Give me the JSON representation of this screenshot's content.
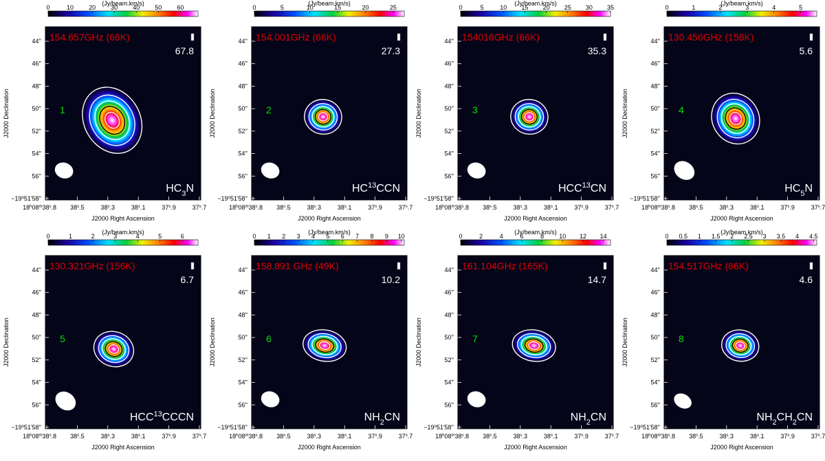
{
  "chart_data": [
    {
      "type": "heatmap",
      "title": "154.657GHz (66K)",
      "panel_number": "1",
      "molecule": "HC<sub>3</sub>N",
      "peak_label": "67.8",
      "colorbar": {
        "label": "(Jy/beam.km/s)",
        "ticks": [
          "0",
          "10",
          "20",
          "30",
          "40",
          "50",
          "60"
        ],
        "tick_values": [
          0,
          10,
          20,
          30,
          40,
          50,
          60
        ],
        "range": [
          0,
          68
        ]
      },
      "xlabel": "J2000 Right Ascension",
      "ylabel": "J2000 Declination",
      "x_ticks": [
        "18<sup>h</sup>08<sup>m</sup>38<sup>s</sup>.8",
        "38<sup>s</sup>.5",
        "38<sup>s</sup>.3",
        "38<sup>s</sup>.1",
        "37<sup>s</sup>.9",
        "37<sup>s</sup>.7"
      ],
      "y_ticks": [
        "44''",
        "46''",
        "48''",
        "50''",
        "52''",
        "54''",
        "56''",
        "−19<sup>o</sup>51'58''"
      ],
      "contour_levels_frac": [
        0.1,
        0.2,
        0.4,
        0.6,
        0.8
      ],
      "source": {
        "x": 0.43,
        "y": 0.54,
        "rx": 0.18,
        "ry": 0.2,
        "angle": -30
      },
      "beam": {
        "x": 0.12,
        "y": 0.83,
        "rx": 0.06,
        "ry": 0.045,
        "angle": 20
      }
    },
    {
      "type": "heatmap",
      "title": "154.001GHz (66K)",
      "panel_number": "2",
      "molecule": "HC<sup>13</sup>CCN",
      "peak_label": "27.3",
      "colorbar": {
        "label": "(Jy/beam.km/s)",
        "ticks": [
          "0",
          "5",
          "10",
          "15",
          "20",
          "25"
        ],
        "tick_values": [
          0,
          5,
          10,
          15,
          20,
          25
        ],
        "range": [
          0,
          27
        ]
      },
      "xlabel": "J2000 Right Ascension",
      "ylabel": "J2000 Declination",
      "x_ticks": [
        "18<sup>h</sup>08<sup>m</sup>38<sup>s</sup>.8",
        "38<sup>s</sup>.5",
        "38<sup>s</sup>.3",
        "38<sup>s</sup>.1",
        "37<sup>s</sup>.9",
        "37<sup>s</sup>.7"
      ],
      "y_ticks": [
        "44''",
        "46''",
        "48''",
        "50''",
        "52''",
        "54''",
        "56''",
        "−19<sup>o</sup>51'58''"
      ],
      "contour_levels_frac": [
        0.1,
        0.2,
        0.4,
        0.6,
        0.8
      ],
      "source": {
        "x": 0.46,
        "y": 0.52,
        "rx": 0.12,
        "ry": 0.1,
        "angle": 10
      },
      "beam": {
        "x": 0.12,
        "y": 0.83,
        "rx": 0.06,
        "ry": 0.045,
        "angle": 20
      }
    },
    {
      "type": "heatmap",
      "title": "154016GHz (66K)",
      "panel_number": "3",
      "molecule": "HCC<sup>13</sup>CN",
      "peak_label": "35.3",
      "colorbar": {
        "label": "(Jy/beam.km/s)",
        "ticks": [
          "0",
          "5",
          "10",
          "15",
          "20",
          "25",
          "30",
          "35"
        ],
        "tick_values": [
          0,
          5,
          10,
          15,
          20,
          25,
          30,
          35
        ],
        "range": [
          0,
          35
        ]
      },
      "xlabel": "J2000 Right Ascension",
      "ylabel": "J2000 Declination",
      "x_ticks": [
        "18<sup>h</sup>08<sup>m</sup>38<sup>s</sup>.8",
        "38<sup>s</sup>.5",
        "38<sup>s</sup>.3",
        "38<sup>s</sup>.1",
        "37<sup>s</sup>.9",
        "37<sup>s</sup>.7"
      ],
      "y_ticks": [
        "44''",
        "46''",
        "48''",
        "50''",
        "52''",
        "54''",
        "56''",
        "−19<sup>o</sup>51'58''"
      ],
      "contour_levels_frac": [
        0.1,
        0.2,
        0.4,
        0.6,
        0.8
      ],
      "source": {
        "x": 0.46,
        "y": 0.52,
        "rx": 0.12,
        "ry": 0.1,
        "angle": 10
      },
      "beam": {
        "x": 0.12,
        "y": 0.83,
        "rx": 0.06,
        "ry": 0.045,
        "angle": 20
      }
    },
    {
      "type": "heatmap",
      "title": "130.456GHz (156K)",
      "panel_number": "4",
      "molecule": "HC<sub>5</sub>N",
      "peak_label": "5.6",
      "colorbar": {
        "label": "(Jy/beam.km/s)",
        "ticks": [
          "0",
          "1",
          "2",
          "3",
          "4",
          "5"
        ],
        "tick_values": [
          0,
          1,
          2,
          3,
          4,
          5
        ],
        "range": [
          0,
          5.6
        ]
      },
      "xlabel": "J2000 Right Ascension",
      "ylabel": "J2000 Declination",
      "x_ticks": [
        "18<sup>h</sup>08<sup>m</sup>38<sup>s</sup>.8",
        "38<sup>s</sup>.5",
        "38<sup>s</sup>.3",
        "38<sup>s</sup>.1",
        "37<sup>s</sup>.9",
        "37<sup>s</sup>.7"
      ],
      "y_ticks": [
        "44''",
        "46''",
        "48''",
        "50''",
        "52''",
        "54''",
        "56''",
        "−19<sup>o</sup>51'58''"
      ],
      "contour_levels_frac": [
        0.1,
        0.2,
        0.4,
        0.6,
        0.8
      ],
      "source": {
        "x": 0.46,
        "y": 0.53,
        "rx": 0.15,
        "ry": 0.15,
        "angle": -30
      },
      "beam": {
        "x": 0.13,
        "y": 0.83,
        "rx": 0.07,
        "ry": 0.05,
        "angle": 35
      }
    },
    {
      "type": "heatmap",
      "title": "130.321GHz (156K)",
      "panel_number": "5",
      "molecule": "HCC<sup>13</sup>CCCN",
      "peak_label": "6.7",
      "colorbar": {
        "label": "(Jy/beam.km/s)",
        "ticks": [
          "0",
          "1",
          "2",
          "3",
          "4",
          "5",
          "6"
        ],
        "tick_values": [
          0,
          1,
          2,
          3,
          4,
          5,
          6
        ],
        "range": [
          0,
          6.7
        ]
      },
      "xlabel": "J2000 Right Ascension",
      "ylabel": "J2000 Declination",
      "x_ticks": [
        "18<sup>h</sup>08<sup>m</sup>38<sup>s</sup>.8",
        "38<sup>s</sup>.5",
        "38<sup>s</sup>.3",
        "38<sup>s</sup>.1",
        "37<sup>s</sup>.9",
        "37<sup>s</sup>.7"
      ],
      "y_ticks": [
        "44''",
        "46''",
        "48''",
        "50''",
        "52''",
        "54''",
        "56''",
        "−19<sup>o</sup>51'58''"
      ],
      "contour_levels_frac": [
        0.1,
        0.2,
        0.4,
        0.6,
        0.8
      ],
      "source": {
        "x": 0.44,
        "y": 0.54,
        "rx": 0.13,
        "ry": 0.1,
        "angle": 20
      },
      "beam": {
        "x": 0.13,
        "y": 0.84,
        "rx": 0.07,
        "ry": 0.05,
        "angle": 35
      }
    },
    {
      "type": "heatmap",
      "title": "158.891 GHz (49K)",
      "panel_number": "6",
      "molecule": "NH<sub>2</sub>CN",
      "peak_label": "10.2",
      "colorbar": {
        "label": "(Jy/beam.km/s)",
        "ticks": [
          "0",
          "1",
          "2",
          "3",
          "4",
          "5",
          "6",
          "7",
          "8",
          "9",
          "10"
        ],
        "tick_values": [
          0,
          1,
          2,
          3,
          4,
          5,
          6,
          7,
          8,
          9,
          10
        ],
        "range": [
          0,
          10.2
        ]
      },
      "xlabel": "J2000 Right Ascension",
      "ylabel": "J2000 Declination",
      "x_ticks": [
        "18<sup>h</sup>08<sup>m</sup>38<sup>s</sup>.8",
        "38<sup>s</sup>.5",
        "38<sup>s</sup>.3",
        "38<sup>s</sup>.1",
        "37<sup>s</sup>.9",
        "37<sup>s</sup>.7"
      ],
      "y_ticks": [
        "44''",
        "46''",
        "48''",
        "50''",
        "52''",
        "54''",
        "56''",
        "−19<sup>o</sup>51'58''"
      ],
      "contour_levels_frac": [
        0.1,
        0.2,
        0.4,
        0.6,
        0.8
      ],
      "source": {
        "x": 0.47,
        "y": 0.52,
        "rx": 0.14,
        "ry": 0.09,
        "angle": 10
      },
      "beam": {
        "x": 0.12,
        "y": 0.83,
        "rx": 0.06,
        "ry": 0.045,
        "angle": 20
      }
    },
    {
      "type": "heatmap",
      "title": "161.104GHz (165K)",
      "panel_number": "7",
      "molecule": "NH<sub>2</sub>CN",
      "peak_label": "14.7",
      "colorbar": {
        "label": "(Jy/beam.km/s)",
        "ticks": [
          "0",
          "2",
          "4",
          "6",
          "8",
          "10",
          "12",
          "14"
        ],
        "tick_values": [
          0,
          2,
          4,
          6,
          8,
          10,
          12,
          14
        ],
        "range": [
          0,
          14.7
        ]
      },
      "xlabel": "J2000 Right Ascension",
      "ylabel": "J2000 Declination",
      "x_ticks": [
        "18<sup>h</sup>08<sup>m</sup>38<sup>s</sup>.8",
        "38<sup>s</sup>.5",
        "38<sup>s</sup>.3",
        "38<sup>s</sup>.1",
        "37<sup>s</sup>.9",
        "37<sup>s</sup>.7"
      ],
      "y_ticks": [
        "44''",
        "46''",
        "48''",
        "50''",
        "52''",
        "54''",
        "56''",
        "−19<sup>o</sup>51'58''"
      ],
      "contour_levels_frac": [
        0.1,
        0.2,
        0.4,
        0.6,
        0.8
      ],
      "source": {
        "x": 0.49,
        "y": 0.52,
        "rx": 0.14,
        "ry": 0.09,
        "angle": 10
      },
      "beam": {
        "x": 0.12,
        "y": 0.83,
        "rx": 0.06,
        "ry": 0.045,
        "angle": 20
      }
    },
    {
      "type": "heatmap",
      "title": "154.517GHz (86K)",
      "panel_number": "8",
      "molecule": "NH<sub>2</sub>CH<sub>2</sub>CN",
      "peak_label": "4.6",
      "colorbar": {
        "label": "(Jy/beam.km/s)",
        "ticks": [
          "0",
          "0.5",
          "1",
          "1.5",
          "2",
          "2.5",
          "3",
          "3.5",
          "4",
          "4.5"
        ],
        "tick_values": [
          0,
          0.5,
          1,
          1.5,
          2,
          2.5,
          3,
          3.5,
          4,
          4.5
        ],
        "range": [
          0,
          4.6
        ]
      },
      "xlabel": "J2000 Right Ascension",
      "ylabel": "J2000 Declination",
      "x_ticks": [
        "18<sup>h</sup>08<sup>m</sup>38<sup>s</sup>.8",
        "38<sup>s</sup>.5",
        "38<sup>s</sup>.3",
        "38<sup>s</sup>.1",
        "37<sup>s</sup>.9",
        "37<sup>s</sup>.7"
      ],
      "y_ticks": [
        "44''",
        "46''",
        "48''",
        "50''",
        "52''",
        "54''",
        "56''",
        "−19<sup>o</sup>51'58''"
      ],
      "contour_levels_frac": [
        0.1,
        0.2,
        0.4,
        0.6,
        0.8
      ],
      "source": {
        "x": 0.49,
        "y": 0.52,
        "rx": 0.12,
        "ry": 0.09,
        "angle": 10
      },
      "beam": {
        "x": 0.12,
        "y": 0.84,
        "rx": 0.06,
        "ry": 0.04,
        "angle": 30
      }
    }
  ],
  "colors": {
    "title": "#e00000",
    "panel_number": "#00e000",
    "contour": "#ffffff",
    "background": "#05051a"
  }
}
